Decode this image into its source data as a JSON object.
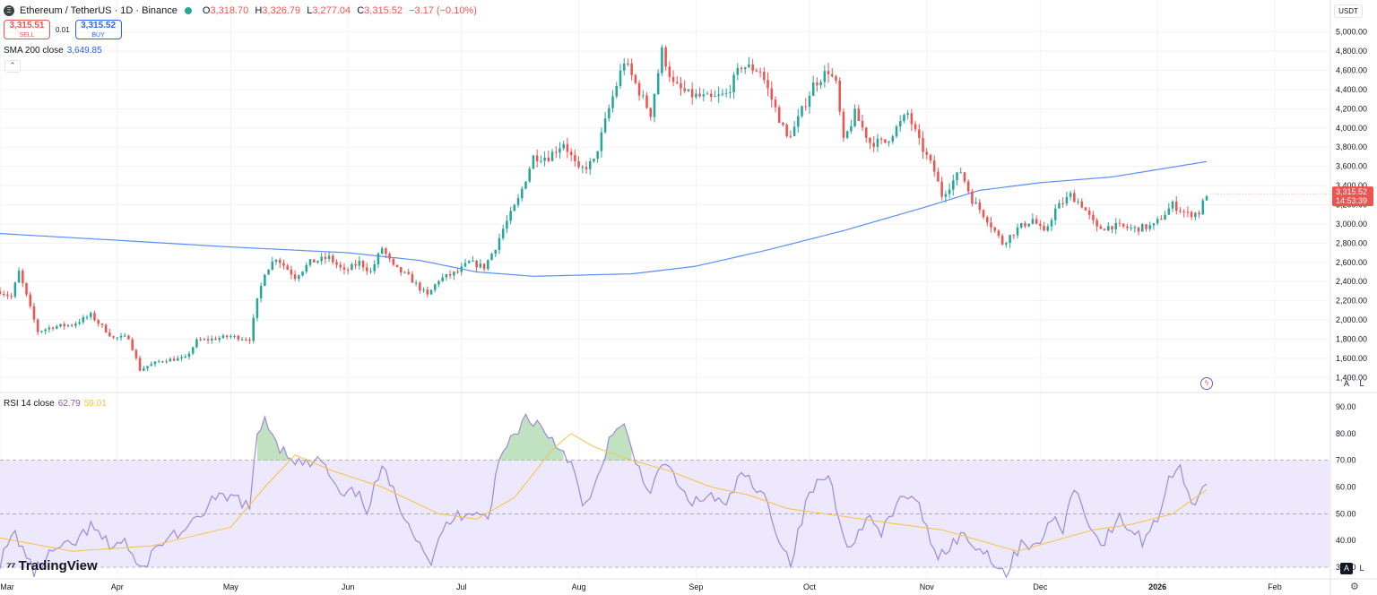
{
  "header": {
    "symbol": "Ethereum / TetherUS · 1D · Binance",
    "logo_glyph": "Ξ",
    "status_color": "#26a69a",
    "o_label": "O",
    "o_value": "3,318.70",
    "h_label": "H",
    "h_value": "3,326.79",
    "l_label": "L",
    "l_value": "3,277.04",
    "c_label": "C",
    "c_value": "3,315.52",
    "change": "−3.17 (−0.10%)"
  },
  "trade": {
    "sell_price": "3,315.51",
    "sell_label": "SELL",
    "spread": "0.01",
    "buy_price": "3,315.52",
    "buy_label": "BUY"
  },
  "indicators": {
    "sma_label": "SMA 200 close",
    "sma_value": "3,649.85",
    "rsi_label": "RSI 14 close",
    "rsi_value": "62.79",
    "rsi_ma_value": "59.01"
  },
  "branding": {
    "name": "TradingView",
    "mark": "⁷⁷"
  },
  "currency": "USDT",
  "scale_buttons": {
    "auto": "A",
    "log": "L"
  },
  "price_badge": {
    "price": "3,315.52",
    "countdown": "14:53:39"
  },
  "icons": {
    "collapse": "chevron-up-icon",
    "settings": "gear-icon",
    "flash": "flash-icon",
    "logo": "ethereum-icon"
  },
  "colors": {
    "up": "#26a69a",
    "down": "#ef5350",
    "sma": "#5b8ff9",
    "rsi": "#9c8ad8",
    "rsi_ma": "#f6c244",
    "rsi_band": "#ede8fb"
  },
  "chart_data": [
    {
      "type": "candlestick",
      "title": "Ethereum / TetherUS · 1D · Binance",
      "x_axis": {
        "tick_labels": [
          "Mar",
          "Apr",
          "May",
          "Jun",
          "Jul",
          "Aug",
          "Sep",
          "Oct",
          "Nov",
          "Dec",
          "2026",
          "Feb"
        ]
      },
      "y_axis": {
        "tick_labels": [
          "1,400.00",
          "1,600.00",
          "1,800.00",
          "2,000.00",
          "2,200.00",
          "2,400.00",
          "2,600.00",
          "2,800.00",
          "3,000.00",
          "3,200.00",
          "3,400.00",
          "3,600.00",
          "3,800.00",
          "4,000.00",
          "4,200.00",
          "4,400.00",
          "4,600.00",
          "4,800.00",
          "5,000.00"
        ],
        "range": [
          1300,
          5100
        ]
      },
      "grid": true,
      "date_range": [
        "2025-03-01",
        "2026-01-14"
      ],
      "series": [
        {
          "name": "ETH/USDT",
          "type": "candlestick",
          "anchors": [
            [
              "2025-03-01",
              2300
            ],
            [
              "2025-03-04",
              2240
            ],
            [
              "2025-03-06",
              2500
            ],
            [
              "2025-03-09",
              2120
            ],
            [
              "2025-03-11",
              1880
            ],
            [
              "2025-03-15",
              1930
            ],
            [
              "2025-03-20",
              1950
            ],
            [
              "2025-03-25",
              2050
            ],
            [
              "2025-03-31",
              1810
            ],
            [
              "2025-04-04",
              1820
            ],
            [
              "2025-04-07",
              1480
            ],
            [
              "2025-04-09",
              1520
            ],
            [
              "2025-04-13",
              1580
            ],
            [
              "2025-04-16",
              1590
            ],
            [
              "2025-04-19",
              1600
            ],
            [
              "2025-04-22",
              1780
            ],
            [
              "2025-04-26",
              1800
            ],
            [
              "2025-05-01",
              1830
            ],
            [
              "2025-05-04",
              1810
            ],
            [
              "2025-05-06",
              1800
            ],
            [
              "2025-05-08",
              2200
            ],
            [
              "2025-05-10",
              2500
            ],
            [
              "2025-05-13",
              2650
            ],
            [
              "2025-05-18",
              2450
            ],
            [
              "2025-05-22",
              2600
            ],
            [
              "2025-05-27",
              2650
            ],
            [
              "2025-05-31",
              2500
            ],
            [
              "2025-06-04",
              2600
            ],
            [
              "2025-06-07",
              2500
            ],
            [
              "2025-06-10",
              2750
            ],
            [
              "2025-06-13",
              2550
            ],
            [
              "2025-06-17",
              2450
            ],
            [
              "2025-06-22",
              2250
            ],
            [
              "2025-06-25",
              2420
            ],
            [
              "2025-06-30",
              2500
            ],
            [
              "2025-07-03",
              2600
            ],
            [
              "2025-07-07",
              2550
            ],
            [
              "2025-07-10",
              2760
            ],
            [
              "2025-07-12",
              2950
            ],
            [
              "2025-07-16",
              3250
            ],
            [
              "2025-07-20",
              3700
            ],
            [
              "2025-07-24",
              3700
            ],
            [
              "2025-07-28",
              3850
            ],
            [
              "2025-08-01",
              3550
            ],
            [
              "2025-08-05",
              3650
            ],
            [
              "2025-08-09",
              4200
            ],
            [
              "2025-08-13",
              4700
            ],
            [
              "2025-08-18",
              4300
            ],
            [
              "2025-08-20",
              4150
            ],
            [
              "2025-08-23",
              4800
            ],
            [
              "2025-08-26",
              4450
            ],
            [
              "2025-08-30",
              4350
            ],
            [
              "2025-09-05",
              4300
            ],
            [
              "2025-09-09",
              4350
            ],
            [
              "2025-09-13",
              4650
            ],
            [
              "2025-09-18",
              4600
            ],
            [
              "2025-09-22",
              4200
            ],
            [
              "2025-09-25",
              3900
            ],
            [
              "2025-09-27",
              4000
            ],
            [
              "2025-10-02",
              4450
            ],
            [
              "2025-10-06",
              4600
            ],
            [
              "2025-10-08",
              4450
            ],
            [
              "2025-10-10",
              3850
            ],
            [
              "2025-10-13",
              4150
            ],
            [
              "2025-10-17",
              3850
            ],
            [
              "2025-10-21",
              3850
            ],
            [
              "2025-10-27",
              4150
            ],
            [
              "2025-10-30",
              3850
            ],
            [
              "2025-11-03",
              3550
            ],
            [
              "2025-11-05",
              3300
            ],
            [
              "2025-11-10",
              3550
            ],
            [
              "2025-11-13",
              3250
            ],
            [
              "2025-11-17",
              3050
            ],
            [
              "2025-11-21",
              2800
            ],
            [
              "2025-11-25",
              2950
            ],
            [
              "2025-11-29",
              3050
            ],
            [
              "2025-12-02",
              2900
            ],
            [
              "2025-12-05",
              3150
            ],
            [
              "2025-12-09",
              3300
            ],
            [
              "2025-12-12",
              3200
            ],
            [
              "2025-12-16",
              2950
            ],
            [
              "2025-12-20",
              2980
            ],
            [
              "2025-12-26",
              2950
            ],
            [
              "2025-12-31",
              2980
            ],
            [
              "2026-01-05",
              3200
            ],
            [
              "2026-01-09",
              3100
            ],
            [
              "2026-01-12",
              3120
            ],
            [
              "2026-01-14",
              3315.52
            ]
          ]
        },
        {
          "name": "SMA 200 close",
          "type": "line",
          "anchors": [
            [
              "2025-03-01",
              2900
            ],
            [
              "2025-04-01",
              2830
            ],
            [
              "2025-05-01",
              2760
            ],
            [
              "2025-06-01",
              2700
            ],
            [
              "2025-06-20",
              2620
            ],
            [
              "2025-07-05",
              2500
            ],
            [
              "2025-07-20",
              2455
            ],
            [
              "2025-08-15",
              2480
            ],
            [
              "2025-09-01",
              2560
            ],
            [
              "2025-09-20",
              2730
            ],
            [
              "2025-10-10",
              2930
            ],
            [
              "2025-11-01",
              3180
            ],
            [
              "2025-11-15",
              3350
            ],
            [
              "2025-12-01",
              3430
            ],
            [
              "2025-12-20",
              3490
            ],
            [
              "2026-01-14",
              3649.85
            ]
          ]
        }
      ]
    },
    {
      "type": "line",
      "title": "RSI 14 close",
      "y_axis": {
        "tick_labels": [
          "30.00",
          "40.00",
          "50.00",
          "60.00",
          "70.00",
          "80.00",
          "90.00"
        ],
        "range": [
          26,
          93
        ]
      },
      "bands": [
        30,
        50,
        70
      ],
      "series": [
        {
          "name": "RSI",
          "anchors": [
            [
              "2025-03-01",
              32
            ],
            [
              "2025-03-05",
              43
            ],
            [
              "2025-03-10",
              28
            ],
            [
              "2025-03-15",
              36
            ],
            [
              "2025-03-20",
              38
            ],
            [
              "2025-03-25",
              45
            ],
            [
              "2025-03-30",
              38
            ],
            [
              "2025-04-03",
              40
            ],
            [
              "2025-04-07",
              28
            ],
            [
              "2025-04-10",
              35
            ],
            [
              "2025-04-15",
              42
            ],
            [
              "2025-04-20",
              44
            ],
            [
              "2025-04-26",
              55
            ],
            [
              "2025-05-03",
              56
            ],
            [
              "2025-05-06",
              52
            ],
            [
              "2025-05-08",
              78
            ],
            [
              "2025-05-10",
              86
            ],
            [
              "2025-05-14",
              75
            ],
            [
              "2025-05-20",
              68
            ],
            [
              "2025-05-25",
              70
            ],
            [
              "2025-05-30",
              56
            ],
            [
              "2025-06-03",
              58
            ],
            [
              "2025-06-06",
              52
            ],
            [
              "2025-06-10",
              67
            ],
            [
              "2025-06-14",
              55
            ],
            [
              "2025-06-19",
              42
            ],
            [
              "2025-06-23",
              32
            ],
            [
              "2025-06-27",
              46
            ],
            [
              "2025-07-01",
              50
            ],
            [
              "2025-07-05",
              52
            ],
            [
              "2025-07-08",
              48
            ],
            [
              "2025-07-11",
              70
            ],
            [
              "2025-07-14",
              78
            ],
            [
              "2025-07-18",
              86
            ],
            [
              "2025-07-21",
              84
            ],
            [
              "2025-07-25",
              78
            ],
            [
              "2025-07-30",
              70
            ],
            [
              "2025-08-02",
              52
            ],
            [
              "2025-08-05",
              58
            ],
            [
              "2025-08-09",
              78
            ],
            [
              "2025-08-13",
              82
            ],
            [
              "2025-08-16",
              70
            ],
            [
              "2025-08-20",
              58
            ],
            [
              "2025-08-24",
              70
            ],
            [
              "2025-08-28",
              58
            ],
            [
              "2025-09-01",
              54
            ],
            [
              "2025-09-05",
              57
            ],
            [
              "2025-09-09",
              52
            ],
            [
              "2025-09-13",
              66
            ],
            [
              "2025-09-17",
              58
            ],
            [
              "2025-09-20",
              55
            ],
            [
              "2025-09-23",
              40
            ],
            [
              "2025-09-26",
              32
            ],
            [
              "2025-10-01",
              58
            ],
            [
              "2025-10-06",
              65
            ],
            [
              "2025-10-09",
              48
            ],
            [
              "2025-10-12",
              36
            ],
            [
              "2025-10-16",
              50
            ],
            [
              "2025-10-20",
              42
            ],
            [
              "2025-10-26",
              58
            ],
            [
              "2025-10-30",
              52
            ],
            [
              "2025-11-04",
              34
            ],
            [
              "2025-11-10",
              42
            ],
            [
              "2025-11-14",
              38
            ],
            [
              "2025-11-18",
              34
            ],
            [
              "2025-11-22",
              27
            ],
            [
              "2025-11-26",
              40
            ],
            [
              "2025-12-01",
              37
            ],
            [
              "2025-12-03",
              48
            ],
            [
              "2025-12-07",
              45
            ],
            [
              "2025-12-10",
              60
            ],
            [
              "2025-12-13",
              50
            ],
            [
              "2025-12-17",
              38
            ],
            [
              "2025-12-22",
              48
            ],
            [
              "2025-12-28",
              40
            ],
            [
              "2026-01-01",
              48
            ],
            [
              "2026-01-04",
              64
            ],
            [
              "2026-01-07",
              68
            ],
            [
              "2026-01-10",
              52
            ],
            [
              "2026-01-12",
              58
            ],
            [
              "2026-01-14",
              62.79
            ]
          ]
        },
        {
          "name": "RSI-based MA",
          "anchors": [
            [
              "2025-03-01",
              41
            ],
            [
              "2025-03-20",
              36
            ],
            [
              "2025-04-10",
              38
            ],
            [
              "2025-05-01",
              45
            ],
            [
              "2025-05-10",
              60
            ],
            [
              "2025-05-18",
              72
            ],
            [
              "2025-05-28",
              66
            ],
            [
              "2025-06-10",
              60
            ],
            [
              "2025-06-25",
              50
            ],
            [
              "2025-07-05",
              48
            ],
            [
              "2025-07-15",
              56
            ],
            [
              "2025-07-25",
              74
            ],
            [
              "2025-07-30",
              80
            ],
            [
              "2025-08-05",
              75
            ],
            [
              "2025-08-15",
              70
            ],
            [
              "2025-08-25",
              66
            ],
            [
              "2025-09-05",
              60
            ],
            [
              "2025-09-15",
              57
            ],
            [
              "2025-09-25",
              52
            ],
            [
              "2025-10-05",
              50
            ],
            [
              "2025-10-15",
              48
            ],
            [
              "2025-10-25",
              46
            ],
            [
              "2025-11-05",
              44
            ],
            [
              "2025-11-15",
              40
            ],
            [
              "2025-11-25",
              36
            ],
            [
              "2025-12-05",
              40
            ],
            [
              "2025-12-15",
              44
            ],
            [
              "2025-12-25",
              46
            ],
            [
              "2026-01-05",
              50
            ],
            [
              "2026-01-14",
              59.01
            ]
          ]
        }
      ]
    }
  ]
}
